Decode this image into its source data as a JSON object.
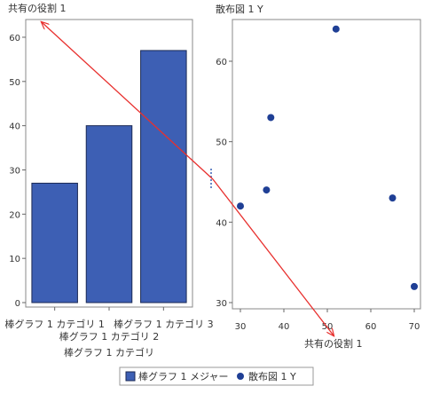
{
  "colors": {
    "bar_fill": "#3d5fb4",
    "bar_stroke": "#1b2a55",
    "point": "#1f3f95",
    "arrow": "#e8302e",
    "axis": "#666666",
    "frame": "#888888",
    "divider": "#6a88c8"
  },
  "legend": {
    "items": [
      {
        "label": "棒グラフ 1 メジャー",
        "marker": "square"
      },
      {
        "label": "散布図 1 Y",
        "marker": "circle"
      }
    ]
  },
  "annotation": {
    "label_top": "共有の役割 1",
    "label_bottom": "共有の役割 1"
  },
  "chart_data": [
    {
      "type": "bar",
      "title": "",
      "xlabel": "棒グラフ 1 カテゴリ",
      "ylabel": "",
      "categories": [
        "棒グラフ 1 カテゴリ 1",
        "棒グラフ 1 カテゴリ 2",
        "棒グラフ 1 カテゴリ 3"
      ],
      "values": [
        27,
        40,
        57
      ],
      "ylim": [
        0,
        62
      ],
      "yticks": [
        0,
        10,
        20,
        30,
        40,
        50,
        60
      ],
      "grid": false
    },
    {
      "type": "scatter",
      "title": "散布図 1 Y",
      "xlabel": "",
      "ylabel": "",
      "points": [
        {
          "x": 30,
          "y": 42
        },
        {
          "x": 36,
          "y": 44
        },
        {
          "x": 37,
          "y": 53
        },
        {
          "x": 52,
          "y": 64
        },
        {
          "x": 65,
          "y": 43
        },
        {
          "x": 70,
          "y": 32
        }
      ],
      "xlim": [
        29,
        71
      ],
      "ylim": [
        30,
        66
      ],
      "xticks": [
        30,
        40,
        50,
        60,
        70
      ],
      "yticks": [
        30,
        40,
        50,
        60
      ],
      "grid": false
    }
  ]
}
